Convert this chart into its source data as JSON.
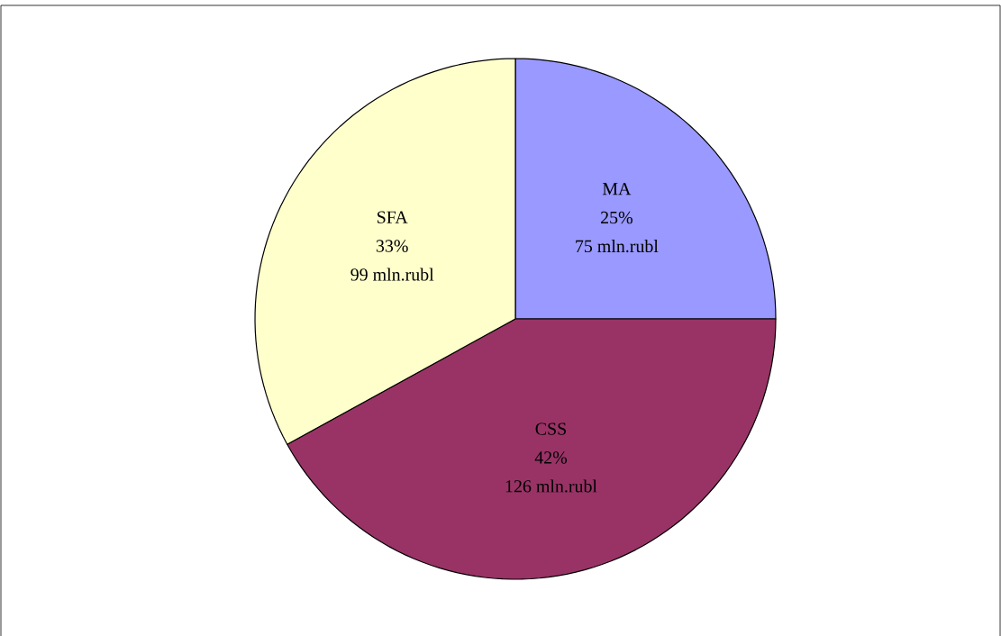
{
  "chart_data": {
    "type": "pie",
    "categories": [
      "MA",
      "CSS",
      "SFA"
    ],
    "values": [
      75,
      126,
      99
    ],
    "colors": [
      "#9999ff",
      "#993366",
      "#ffffcc"
    ],
    "value_labels": [
      "75 mln.rubl",
      "126 mln.rubl",
      "99 mln.rubl"
    ],
    "annotations": [
      "25%",
      "42%",
      "33%"
    ]
  }
}
